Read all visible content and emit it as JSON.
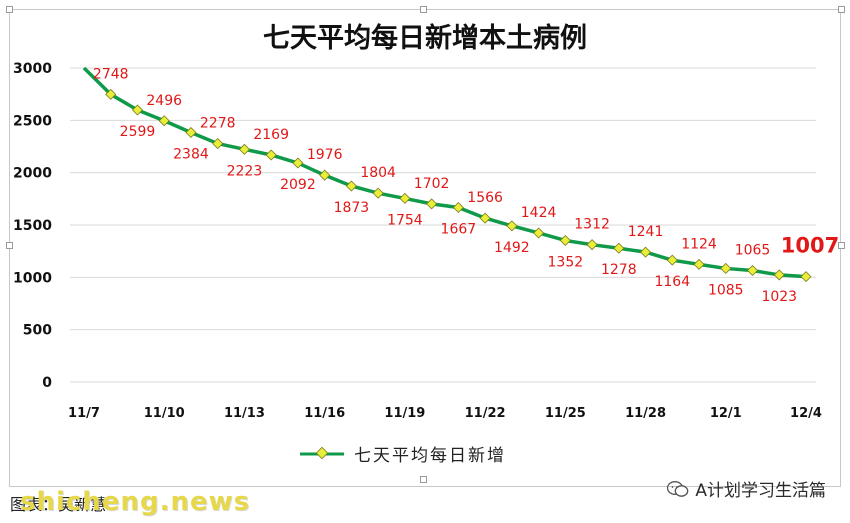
{
  "chart_data": {
    "type": "line",
    "title": "七天平均每日新增本土病例",
    "x_ticks": [
      "11/7",
      "11/10",
      "11/13",
      "11/16",
      "11/19",
      "11/22",
      "11/25",
      "11/28",
      "12/1",
      "12/4"
    ],
    "y_ticks": [
      0,
      500,
      1000,
      1500,
      2000,
      2500,
      3000
    ],
    "ylim": [
      0,
      3000
    ],
    "x": [
      "11/7",
      "11/8",
      "11/9",
      "11/10",
      "11/11",
      "11/12",
      "11/13",
      "11/14",
      "11/15",
      "11/16",
      "11/17",
      "11/18",
      "11/19",
      "11/20",
      "11/21",
      "11/22",
      "11/23",
      "11/24",
      "11/25",
      "11/26",
      "11/27",
      "11/28",
      "11/29",
      "11/30",
      "12/1",
      "12/2",
      "12/3",
      "12/4"
    ],
    "series": [
      {
        "name": "七天平均每日新增",
        "color": "#0f9a4a",
        "marker_color": "#e8ef3a",
        "values": [
          3000,
          2748,
          2599,
          2496,
          2384,
          2278,
          2223,
          2169,
          2092,
          1976,
          1873,
          1804,
          1754,
          1702,
          1667,
          1566,
          1492,
          1424,
          1352,
          1312,
          1278,
          1241,
          1164,
          1124,
          1085,
          1065,
          1023,
          1007
        ]
      }
    ],
    "data_labels": [
      {
        "index": 1,
        "text": "2748",
        "pos": "above"
      },
      {
        "index": 2,
        "text": "2599",
        "pos": "below"
      },
      {
        "index": 3,
        "text": "2496",
        "pos": "above"
      },
      {
        "index": 4,
        "text": "2384",
        "pos": "below"
      },
      {
        "index": 5,
        "text": "2278",
        "pos": "above"
      },
      {
        "index": 6,
        "text": "2223",
        "pos": "below"
      },
      {
        "index": 7,
        "text": "2169",
        "pos": "above"
      },
      {
        "index": 8,
        "text": "2092",
        "pos": "below"
      },
      {
        "index": 9,
        "text": "1976",
        "pos": "above"
      },
      {
        "index": 10,
        "text": "1873",
        "pos": "below"
      },
      {
        "index": 11,
        "text": "1804",
        "pos": "above"
      },
      {
        "index": 12,
        "text": "1754",
        "pos": "below"
      },
      {
        "index": 13,
        "text": "1702",
        "pos": "above"
      },
      {
        "index": 14,
        "text": "1667",
        "pos": "below"
      },
      {
        "index": 15,
        "text": "1566",
        "pos": "above"
      },
      {
        "index": 16,
        "text": "1492",
        "pos": "below"
      },
      {
        "index": 17,
        "text": "1424",
        "pos": "above"
      },
      {
        "index": 18,
        "text": "1352",
        "pos": "below"
      },
      {
        "index": 19,
        "text": "1312",
        "pos": "above"
      },
      {
        "index": 20,
        "text": "1278",
        "pos": "below"
      },
      {
        "index": 21,
        "text": "1241",
        "pos": "above"
      },
      {
        "index": 22,
        "text": "1164",
        "pos": "below"
      },
      {
        "index": 23,
        "text": "1124",
        "pos": "above"
      },
      {
        "index": 24,
        "text": "1085",
        "pos": "below"
      },
      {
        "index": 25,
        "text": "1065",
        "pos": "above"
      },
      {
        "index": 26,
        "text": "1023",
        "pos": "below"
      },
      {
        "index": 27,
        "text": "1007",
        "pos": "above",
        "highlight": true
      }
    ],
    "label_color": "#e01818",
    "grid": true,
    "legend": "bottom"
  },
  "footer": {
    "credit": "图表：吴新慧",
    "watermark": "shicheng.news",
    "wechat_account": "A计划学习生活篇"
  }
}
